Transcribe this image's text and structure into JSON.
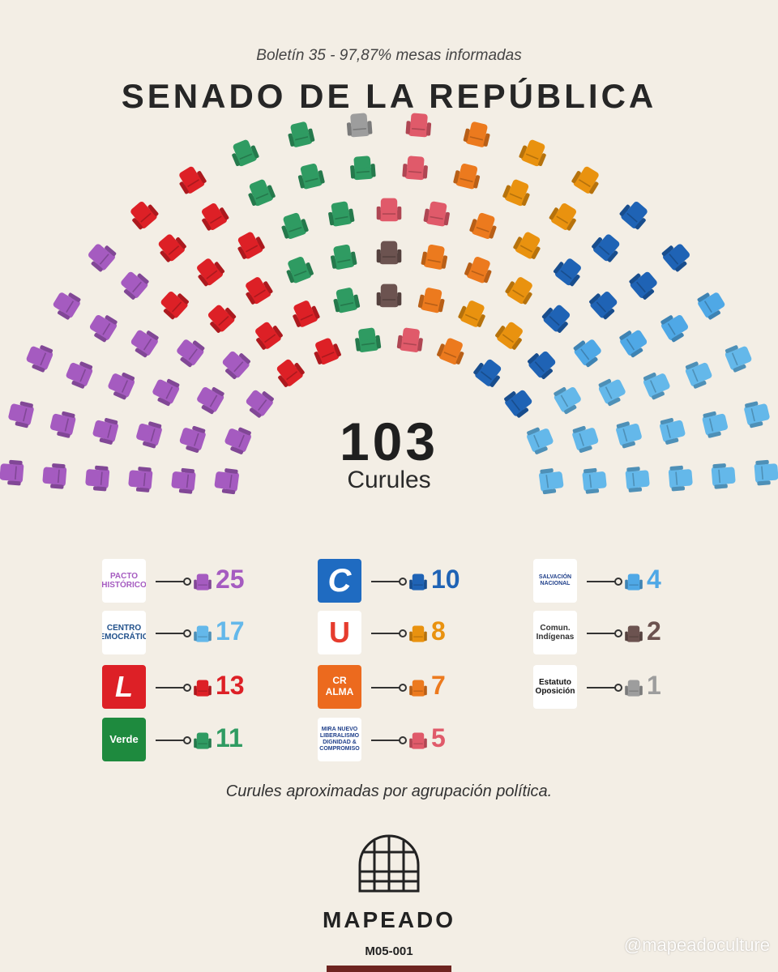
{
  "header": {
    "subtitle": "Boletín 35 - 97,87% mesas informadas",
    "title": "SENADO DE LA REPÚBLICA"
  },
  "center": {
    "total": "103",
    "label": "Curules"
  },
  "chart_data": {
    "type": "parliament",
    "total": 103,
    "series": [
      {
        "name": "PACTO HISTÓRICO",
        "value": 25,
        "color": "#a55bc0"
      },
      {
        "name": "Liberal",
        "value": 13,
        "color": "#dd2026"
      },
      {
        "name": "Verde",
        "value": 11,
        "color": "#2f9b62"
      },
      {
        "name": "Estatuto Oposición",
        "value": 1,
        "color": "#9d9d9d"
      },
      {
        "name": "Comun. Indígenas",
        "value": 2,
        "color": "#6c5350"
      },
      {
        "name": "MIRA / Nuevo Liberalismo / Dignidad & Compromiso",
        "value": 5,
        "color": "#e05a6a"
      },
      {
        "name": "Cambio Radical / ALMA",
        "value": 7,
        "color": "#ec7a1e"
      },
      {
        "name": "U",
        "value": 8,
        "color": "#e9920f"
      },
      {
        "name": "Conservador",
        "value": 10,
        "color": "#1f63b5"
      },
      {
        "name": "Salvación Nacional",
        "value": 4,
        "color": "#4fa8e6"
      },
      {
        "name": "CENTRO DEMOCRÁTICO",
        "value": 17,
        "color": "#64b8ea"
      }
    ]
  },
  "legend": [
    {
      "logo": "PACTO HISTÓRICO",
      "count": "25",
      "color": "#a55bc0",
      "logo_bg": "#ffffff",
      "logo_color": "#a55bc0"
    },
    {
      "logo": "CENTRO DEMOCRÁTICO",
      "count": "17",
      "color": "#64b8ea",
      "logo_bg": "#ffffff",
      "logo_color": "#1f4f8a"
    },
    {
      "logo": "L",
      "count": "13",
      "color": "#dd2026",
      "logo_bg": "#dd2026",
      "logo_color": "#ffffff"
    },
    {
      "logo": "Verde",
      "count": "11",
      "color": "#2f9b62",
      "logo_bg": "#1e8a3e",
      "logo_color": "#ffffff"
    },
    {
      "logo": "C",
      "count": "10",
      "color": "#1f63b5",
      "logo_bg": "#1f6bc1",
      "logo_color": "#ffffff"
    },
    {
      "logo": "U",
      "count": "8",
      "color": "#e9920f",
      "logo_bg": "#ffffff",
      "logo_color": "#e63c2e"
    },
    {
      "logo": "CR ALMA",
      "count": "7",
      "color": "#ec7a1e",
      "logo_bg": "#ec6a1e",
      "logo_color": "#ffffff"
    },
    {
      "logo": "MIRA NUEVO LIBERALISMO DIGNIDAD & COMPROMISO",
      "count": "5",
      "color": "#e05a6a",
      "logo_bg": "#ffffff",
      "logo_color": "#1f3f8a"
    },
    {
      "logo": "SALVACIÓN NACIONAL",
      "count": "4",
      "color": "#4fa8e6",
      "logo_bg": "#ffffff",
      "logo_color": "#1f3f8a"
    },
    {
      "logo": "Comun. Indígenas",
      "count": "2",
      "color": "#6c5350",
      "logo_bg": "#ffffff",
      "logo_color": "#333333"
    },
    {
      "logo": "Estatuto Oposición",
      "count": "1",
      "color": "#9d9d9d",
      "logo_bg": "#ffffff",
      "logo_color": "#111111"
    }
  ],
  "footnote": "Curules aproximadas por agrupación política.",
  "brand": {
    "name": "MAPEADO",
    "code": "M05-001",
    "handle": "@mapeadoculture"
  }
}
